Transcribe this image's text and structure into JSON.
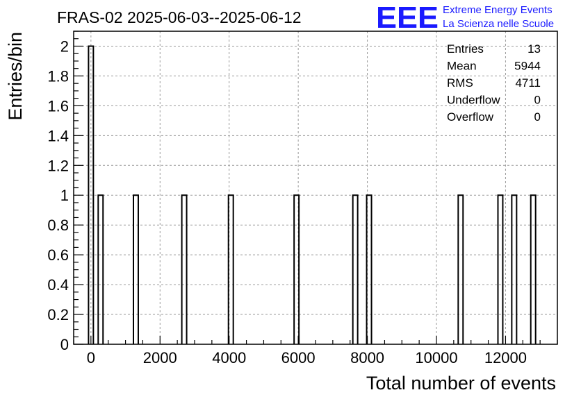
{
  "title": "FRAS-02 2025-06-03--2025-06-12",
  "logo": {
    "mark": "EEE",
    "line1": "Extreme Energy Events",
    "line2": "La Scienza nelle Scuole",
    "color": "#1a1aff"
  },
  "stats": [
    {
      "label": "Entries",
      "value": "13"
    },
    {
      "label": "Mean",
      "value": "5944"
    },
    {
      "label": "RMS",
      "value": "4711"
    },
    {
      "label": "Underflow",
      "value": "0"
    },
    {
      "label": "Overflow",
      "value": "0"
    }
  ],
  "chart_data": {
    "type": "bar",
    "xlabel": "Total number of events",
    "ylabel": "Entries/bin",
    "xlim": [
      -500,
      13500
    ],
    "ylim": [
      0,
      2.1
    ],
    "grid": true,
    "bin_width": 140,
    "xticks": [
      0,
      2000,
      4000,
      6000,
      8000,
      10000,
      12000
    ],
    "yticks": [
      0,
      0.2,
      0.4,
      0.6,
      0.8,
      1,
      1.2,
      1.4,
      1.6,
      1.8,
      2
    ],
    "ytick_labels": [
      "0",
      "0.2",
      "0.4",
      "0.6",
      "0.8",
      "1",
      "1.2",
      "1.4",
      "1.6",
      "1.8",
      "2"
    ],
    "bins": [
      {
        "x": 0,
        "count": 2
      },
      {
        "x": 280,
        "count": 1
      },
      {
        "x": 1300,
        "count": 1
      },
      {
        "x": 2700,
        "count": 1
      },
      {
        "x": 4050,
        "count": 1
      },
      {
        "x": 5950,
        "count": 1
      },
      {
        "x": 7650,
        "count": 1
      },
      {
        "x": 8050,
        "count": 1
      },
      {
        "x": 10700,
        "count": 1
      },
      {
        "x": 11850,
        "count": 1
      },
      {
        "x": 12250,
        "count": 1
      },
      {
        "x": 12800,
        "count": 1
      }
    ]
  }
}
